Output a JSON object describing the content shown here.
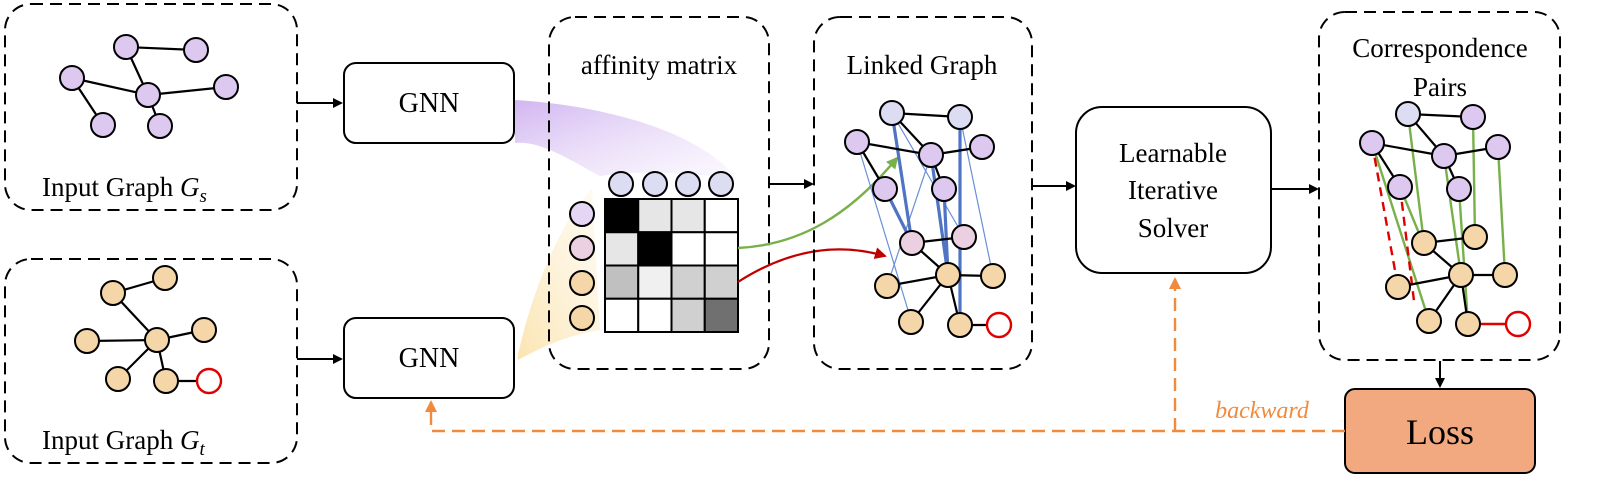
{
  "labels": {
    "input_graph_s": "Input Graph",
    "input_graph_s_symbol": "G",
    "input_graph_s_subscript": "s",
    "input_graph_t": "Input Graph",
    "input_graph_t_symbol": "G",
    "input_graph_t_subscript": "t",
    "gnn_top": "GNN",
    "gnn_bottom": "GNN",
    "affinity_matrix": "affinity matrix",
    "linked_graph": "Linked Graph",
    "solver_line1": "Learnable",
    "solver_line2": "Iterative",
    "solver_line3": "Solver",
    "correspondence_line1": "Correspondence",
    "correspondence_line2": "Pairs",
    "loss": "Loss",
    "backward": "backward"
  },
  "colors": {
    "source_node": "#ddc9ef",
    "target_node": "#f5d6a8",
    "unmatched_node_outline": "#e00000",
    "loss_fill": "#f2a980",
    "backward_arrow": "#f08a3c",
    "correct_match": "#78b04a",
    "wrong_match": "#e00000",
    "link_edges": "#4f74c4"
  },
  "affinity_matrix": {
    "shades": [
      [
        "#000000",
        "#e6e6e6",
        "#e6e6e6",
        "#ffffff"
      ],
      [
        "#e6e6e6",
        "#000000",
        "#ffffff",
        "#ffffff"
      ],
      [
        "#c0c0c0",
        "#f0f0f0",
        "#d0d0d0",
        "#d0d0d0"
      ],
      [
        "#ffffff",
        "#ffffff",
        "#d0d0d0",
        "#707070"
      ]
    ]
  }
}
